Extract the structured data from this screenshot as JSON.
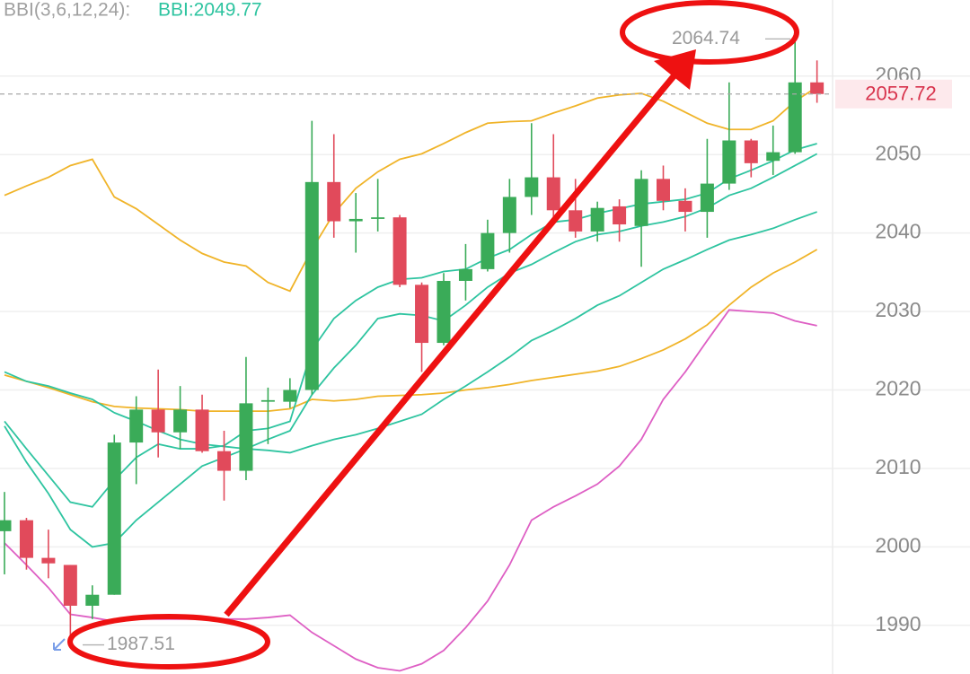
{
  "chart_data": {
    "type": "candlestick",
    "indicator": "BBI(3,6,12,24):",
    "indicator_value": "BBI:2049.77",
    "ylim": [
      1983.8,
      2069.7
    ],
    "yticks": [
      1990,
      2000,
      2010,
      2020,
      2030,
      2040,
      2050,
      2060
    ],
    "grid": true,
    "up_color": "#3aab58",
    "down_color": "#e14a5b",
    "max_label": 2064.74,
    "min_label": 1987.51,
    "last_price": 2057.72,
    "candles": {
      "open": [
        2002.0,
        2003.4,
        1998.6,
        1997.7,
        1992.5,
        1993.9,
        2013.3,
        2017.5,
        2014.6,
        2017.5,
        2012.2,
        2009.7,
        2018.5,
        2018.5,
        2020.0,
        2046.5,
        2041.5,
        2041.8,
        2042.0,
        2033.4,
        2026.0,
        2033.9,
        2035.4,
        2040.0,
        2044.6,
        2047.1,
        2042.9,
        2040.2,
        2043.4,
        2040.9,
        2046.9,
        2044.1,
        2042.7,
        2046.3,
        2051.8,
        2049.2,
        2050.3,
        2059.2
      ],
      "high": [
        2007.0,
        2003.7,
        2002.2,
        1997.7,
        1995.1,
        2014.3,
        2019.2,
        2022.6,
        2020.5,
        2019.4,
        2014.8,
        2024.2,
        2020.3,
        2021.5,
        2054.3,
        2052.6,
        2045.1,
        2046.9,
        2042.3,
        2033.7,
        2034.9,
        2038.6,
        2041.7,
        2046.9,
        2054.0,
        2052.6,
        2046.9,
        2044.0,
        2044.3,
        2048.0,
        2048.6,
        2045.7,
        2052.0,
        2059.2,
        2052.0,
        2053.7,
        2064.74,
        2062.0
      ],
      "low": [
        1996.5,
        1997.1,
        1996.0,
        1987.51,
        1990.8,
        1993.9,
        2008.0,
        2011.4,
        2012.5,
        2012.0,
        2005.9,
        2008.5,
        2013.1,
        2017.7,
        2019.4,
        2039.4,
        2037.5,
        2040.2,
        2033.1,
        2022.3,
        2025.7,
        2031.4,
        2035.1,
        2037.5,
        2042.3,
        2041.4,
        2039.4,
        2038.9,
        2038.9,
        2035.7,
        2042.9,
        2040.2,
        2039.4,
        2045.5,
        2047.1,
        2047.4,
        2050.1,
        2056.6
      ],
      "close": [
        2003.4,
        1998.6,
        1997.9,
        1992.5,
        1993.9,
        2013.3,
        2017.5,
        2014.6,
        2017.5,
        2012.2,
        2009.7,
        2018.3,
        2018.7,
        2020.0,
        2046.5,
        2041.5,
        2041.8,
        2042.0,
        2033.4,
        2026.0,
        2033.9,
        2035.4,
        2040.0,
        2044.6,
        2047.1,
        2042.9,
        2040.2,
        2043.2,
        2041.1,
        2046.9,
        2044.1,
        2042.7,
        2046.3,
        2051.8,
        2048.9,
        2050.3,
        2059.2,
        2057.72
      ]
    },
    "lines": [
      {
        "color": "#f0b429",
        "values": [
          2044.8,
          2046.0,
          2047.1,
          2048.6,
          2049.4,
          2044.6,
          2043.1,
          2041.1,
          2039.1,
          2037.4,
          2036.3,
          2035.8,
          2033.7,
          2032.6,
          2037.9,
          2042.5,
          2045.7,
          2047.8,
          2049.4,
          2050.1,
          2051.4,
          2052.8,
          2054.0,
          2054.2,
          2054.3,
          2055.3,
          2056.2,
          2057.2,
          2057.6,
          2057.8,
          2056.8,
          2055.4,
          2054.0,
          2053.2,
          2053.2,
          2054.3,
          2056.8,
          2058.6
        ]
      },
      {
        "color": "#f0b429",
        "values": [
          2021.9,
          2021.1,
          2020.3,
          2019.4,
          2018.5,
          2017.9,
          2017.7,
          2017.6,
          2017.5,
          2017.3,
          2017.3,
          2017.3,
          2017.3,
          2017.6,
          2018.8,
          2018.6,
          2018.8,
          2019.2,
          2019.3,
          2019.4,
          2019.6,
          2020.0,
          2020.3,
          2020.7,
          2021.2,
          2021.6,
          2022.0,
          2022.4,
          2023.0,
          2024.0,
          2025.1,
          2026.5,
          2028.3,
          2030.8,
          2033.1,
          2034.9,
          2036.3,
          2037.9
        ]
      },
      {
        "color": "#de5fc4",
        "values": [
          2000.5,
          1997.7,
          1994.8,
          1991.4,
          1991.0,
          1990.5,
          1990.8,
          1990.8,
          1990.8,
          1990.8,
          1990.8,
          1990.8,
          1991.0,
          1991.3,
          1989.1,
          1987.4,
          1985.7,
          1984.6,
          1984.2,
          1985.1,
          1986.8,
          1989.7,
          1993.1,
          1997.7,
          2003.4,
          2005.1,
          2006.5,
          2008.0,
          2010.3,
          2013.7,
          2018.8,
          2022.3,
          2026.3,
          2030.2,
          2030.0,
          2029.8,
          2028.8,
          2028.2
        ]
      },
      {
        "color": "#2ec4a0",
        "values": [
          2016.0,
          2012.5,
          2009.1,
          2005.7,
          2005.1,
          2008.5,
          2011.4,
          2013.1,
          2012.5,
          2012.5,
          2012.9,
          2014.8,
          2015.1,
          2016.0,
          2025.1,
          2029.1,
          2031.4,
          2033.1,
          2034.1,
          2034.3,
          2035.1,
          2035.4,
          2036.8,
          2037.9,
          2039.8,
          2041.4,
          2041.7,
          2042.5,
          2043.1,
          2043.7,
          2044.0,
          2044.3,
          2045.1,
          2046.9,
          2048.0,
          2049.2,
          2050.6,
          2051.4
        ]
      },
      {
        "color": "#2ec4a0",
        "values": [
          2015.4,
          2010.8,
          2006.8,
          2002.2,
          2000.0,
          2000.5,
          2003.4,
          2005.7,
          2008.0,
          2010.3,
          2011.4,
          2012.5,
          2013.7,
          2014.8,
          2019.4,
          2022.8,
          2025.7,
          2029.1,
          2029.7,
          2029.5,
          2028.8,
          2030.8,
          2033.1,
          2034.9,
          2036.0,
          2037.5,
          2038.9,
          2039.8,
          2040.2,
          2040.9,
          2041.4,
          2042.1,
          2043.2,
          2044.8,
          2045.7,
          2047.1,
          2048.6,
          2050.1
        ]
      },
      {
        "color": "#2ec4a0",
        "values": [
          2022.3,
          2021.1,
          2020.5,
          2019.6,
          2018.8,
          2017.1,
          2016.0,
          2014.8,
          2013.7,
          2013.1,
          2012.8,
          2012.5,
          2012.3,
          2012.0,
          2012.9,
          2013.7,
          2014.3,
          2015.1,
          2016.0,
          2016.9,
          2018.8,
          2020.5,
          2022.3,
          2024.2,
          2026.3,
          2027.6,
          2029.1,
          2030.8,
          2032.0,
          2033.7,
          2035.4,
          2036.6,
          2037.9,
          2039.1,
          2039.8,
          2040.6,
          2041.7,
          2042.7
        ]
      }
    ]
  }
}
